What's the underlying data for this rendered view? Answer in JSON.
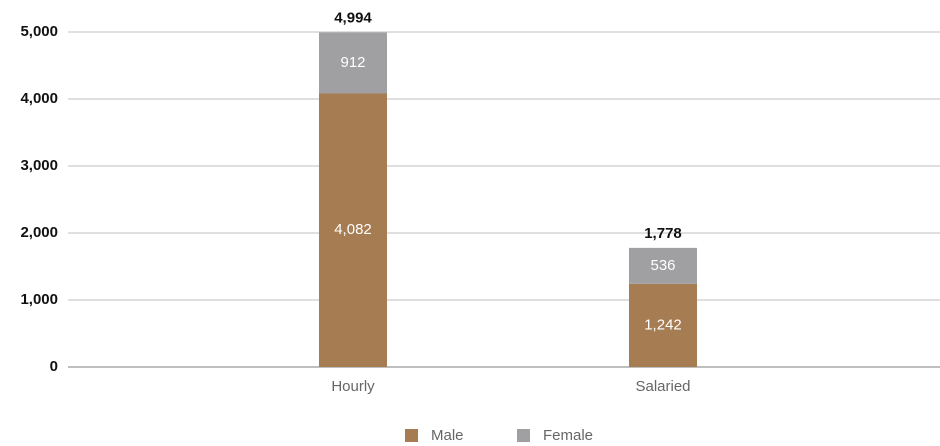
{
  "chart_data": {
    "type": "stacked_bar",
    "categories": [
      "Hourly",
      "Salaried"
    ],
    "series": [
      {
        "name": "Male",
        "color": "#a67c52",
        "values": [
          4082,
          1242
        ],
        "value_labels": [
          "4,082",
          "1,242"
        ]
      },
      {
        "name": "Female",
        "color": "#a0a0a2",
        "values": [
          912,
          536
        ]
      }
    ],
    "totals": {
      "values": [
        4994,
        1778
      ],
      "value_labels": [
        "4,994",
        "1,778"
      ]
    },
    "ylim": [
      0,
      5000
    ],
    "yticks": [
      0,
      {
        "value": 1000,
        "label": "1,000"
      },
      {
        "value": 2000,
        "label": "2,000"
      },
      {
        "value": 3000,
        "label": "3,000"
      },
      {
        "value": 4000,
        "label": "4,000"
      },
      {
        "value": 5000,
        "label": "5,000"
      }
    ],
    "grid": true,
    "legend": "bottom"
  }
}
